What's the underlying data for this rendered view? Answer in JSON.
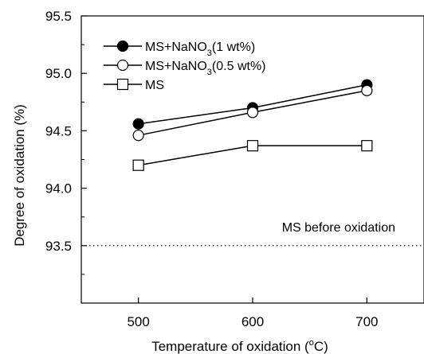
{
  "chart_data": {
    "type": "line",
    "xlabel_main": "Temperature of oxidation (",
    "xlabel_sup": "o",
    "xlabel_end": "C)",
    "ylabel": "Degree of oxidation (%)",
    "xlim": [
      450,
      750
    ],
    "ylim": [
      93.0,
      95.5
    ],
    "x_ticks": [
      500,
      600,
      700
    ],
    "y_ticks": [
      93.5,
      94.0,
      94.5,
      95.0,
      95.5
    ],
    "x_tick_labels": [
      "500",
      "600",
      "700"
    ],
    "y_tick_labels": [
      "93.5",
      "94.0",
      "94.5",
      "95.0",
      "95.5"
    ],
    "legend_position": "top-left",
    "series": [
      {
        "legend": {
          "prefix": "MS+NaNO",
          "sub": "3",
          "suffix": "(1 wt%)"
        },
        "marker": "filled-circle",
        "x": [
          500,
          600,
          700
        ],
        "y": [
          94.56,
          94.7,
          94.9
        ]
      },
      {
        "legend": {
          "prefix": "MS+NaNO",
          "sub": "3",
          "suffix": "(0.5 wt%)"
        },
        "marker": "open-circle",
        "x": [
          500,
          600,
          700
        ],
        "y": [
          94.46,
          94.66,
          94.85
        ]
      },
      {
        "legend": {
          "prefix": "MS",
          "sub": "",
          "suffix": ""
        },
        "marker": "open-square",
        "x": [
          500,
          600,
          700
        ],
        "y": [
          94.2,
          94.37,
          94.37
        ]
      }
    ],
    "reference_line": {
      "y": 93.5,
      "style": "dotted",
      "label": "MS before oxidation"
    }
  }
}
